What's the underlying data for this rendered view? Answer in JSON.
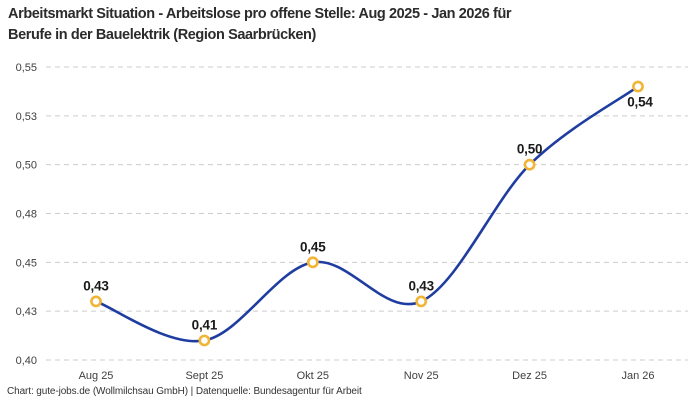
{
  "header": {
    "title_line1": "Arbeitsmarkt Situation - Arbeitslose pro offene Stelle: Aug 2025 - Jan 2026 für",
    "title_line2": "Berufe in der Bauelektrik (Region Saarbrücken)"
  },
  "footer": {
    "attribution": "Chart: gute-jobs.de (Wollmilchsau GmbH) | Datenquelle: Bundesagentur für Arbeit"
  },
  "chart_data": {
    "type": "line",
    "title": "Arbeitsmarkt Situation - Arbeitslose pro offene Stelle: Aug 2025 - Jan 2026 für Berufe in der Bauelektrik (Region Saarbrücken)",
    "categories": [
      "Aug 25",
      "Sept 25",
      "Okt 25",
      "Nov 25",
      "Dez 25",
      "Jan 26"
    ],
    "values": [
      0.43,
      0.41,
      0.45,
      0.43,
      0.5,
      0.54
    ],
    "value_labels": [
      "0,43",
      "0,41",
      "0,45",
      "0,43",
      "0,50",
      "0,54"
    ],
    "value_label_positions": [
      "above",
      "above",
      "above",
      "above",
      "above",
      "below"
    ],
    "xlabel": "",
    "ylabel": "",
    "ylim": [
      0.4,
      0.55
    ],
    "yticks": [
      {
        "value": 0.4,
        "label": "0,40"
      },
      {
        "value": 0.425,
        "label": "0,43"
      },
      {
        "value": 0.45,
        "label": "0,45"
      },
      {
        "value": 0.475,
        "label": "0,48"
      },
      {
        "value": 0.5,
        "label": "0,50"
      },
      {
        "value": 0.525,
        "label": "0,53"
      },
      {
        "value": 0.55,
        "label": "0,55"
      }
    ],
    "grid": "horizontal-dashed",
    "legend_position": "none",
    "smooth_curve": true,
    "colors": {
      "line": "#1f3da0",
      "marker_ring": "#f1b434",
      "marker_fill": "#ffffff",
      "gridline": "#cccccc",
      "tick_text": "#404040",
      "label_text": "#1a1a1a"
    }
  }
}
